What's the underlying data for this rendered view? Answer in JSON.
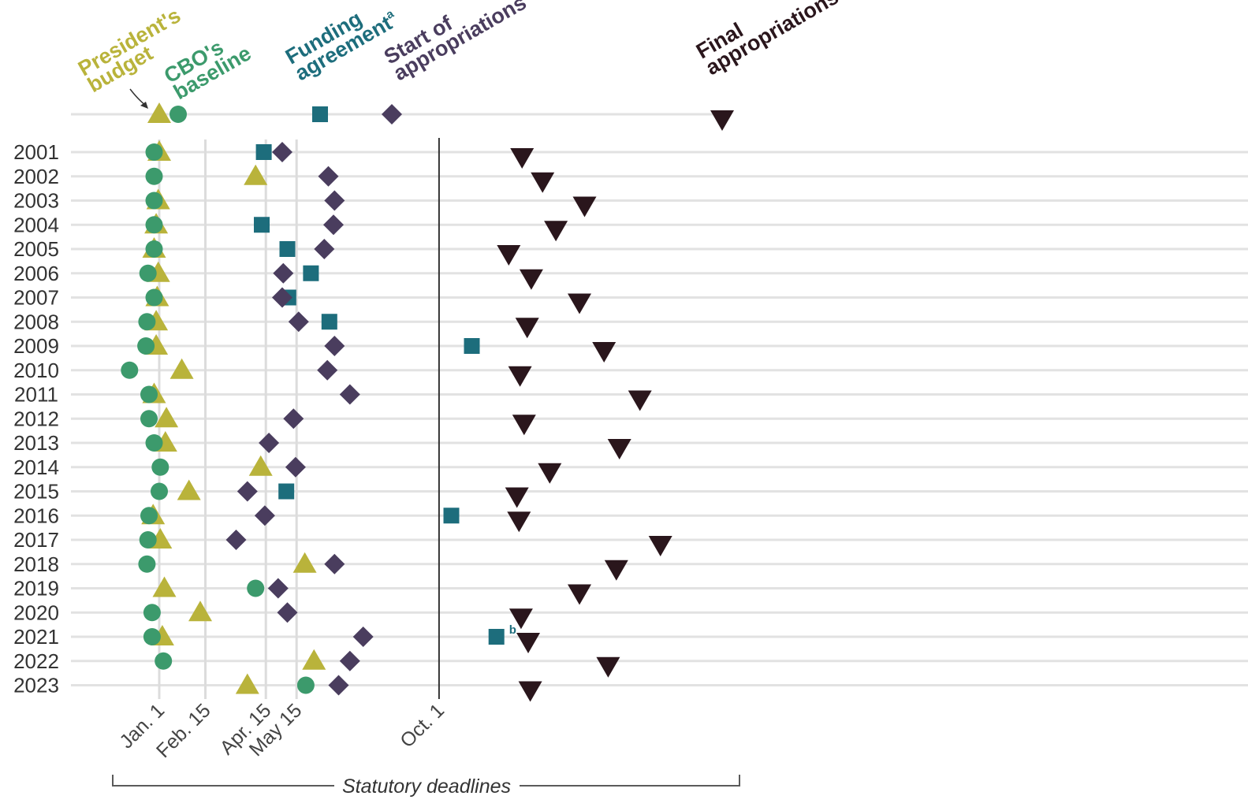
{
  "chart_data": {
    "type": "scatter",
    "x_axis": {
      "scale": "date-of-year",
      "deadline_ticks": [
        {
          "label": "Jan. 1",
          "date": "01-01"
        },
        {
          "label": "Feb. 15",
          "date": "02-15"
        },
        {
          "label": "Apr. 15",
          "date": "04-15"
        },
        {
          "label": "May 15",
          "date": "05-15"
        },
        {
          "label": "Oct. 1",
          "date": "10-01"
        }
      ],
      "bracket_label": "Statutory deadlines"
    },
    "legend": [
      {
        "key": "presidents_budget",
        "label_lines": [
          "President's",
          "budget"
        ],
        "color": "#b9b33b",
        "shape": "triangle-up"
      },
      {
        "key": "cbo_baseline",
        "label_lines": [
          "CBO's",
          "baseline"
        ],
        "color": "#3c9a6c",
        "shape": "circle"
      },
      {
        "key": "funding_agreement",
        "label_lines": [
          "Funding",
          "agreement"
        ],
        "superscript": "a",
        "color": "#1d6d7c",
        "shape": "square"
      },
      {
        "key": "start_of_appropriations",
        "label_lines": [
          "Start of",
          "appropriations"
        ],
        "color": "#4a3d5e",
        "shape": "diamond"
      },
      {
        "key": "final_appropriations",
        "label_lines": [
          "Final",
          "appropriations"
        ],
        "color": "#2a161c",
        "shape": "triangle-down"
      }
    ],
    "categories": [
      "2001",
      "2002",
      "2003",
      "2004",
      "2005",
      "2006",
      "2007",
      "2008",
      "2009",
      "2010",
      "2011",
      "2012",
      "2013",
      "2014",
      "2015",
      "2016",
      "2017",
      "2018",
      "2019",
      "2020",
      "2021",
      "2022",
      "2023"
    ],
    "series": [
      {
        "key": "presidents_budget",
        "name": "President's budget",
        "values": [
          "01-01",
          "04-05",
          "01--1",
          "01--3",
          "01--5",
          "12-31",
          "12-30",
          "12-29",
          "12-29",
          "01-23",
          "12-27",
          "01-08",
          "01-07",
          "04-10",
          "01-30",
          "12-26",
          "01-02",
          "05-23",
          "01-06",
          "02-10",
          "01-04",
          "06-01",
          "03-28"
        ]
      },
      {
        "key": "cbo_baseline",
        "name": "CBO's baseline",
        "values": [
          "12-27",
          "12-27",
          "12-27",
          "12-27",
          "12-27",
          "12-21",
          "12-27",
          "12-20",
          "12-19",
          "12-03",
          "12-22",
          "12-22",
          "12-27",
          "01-02",
          "01-01",
          "12-22",
          "12-21",
          "12-20",
          "04-05",
          "12-25",
          "12-25",
          "01-05",
          "05-24"
        ]
      },
      {
        "key": "funding_agreement",
        "name": "Funding agreement",
        "values": [
          "04-13",
          null,
          null,
          "04-11",
          "05-06",
          "05-29",
          "05-07",
          "06-16",
          "11-02",
          null,
          null,
          null,
          null,
          null,
          "05-05",
          "10-13",
          null,
          null,
          null,
          null,
          "11-26",
          null,
          null
        ]
      },
      {
        "key": "start_of_appropriations",
        "name": "Start of appropriations",
        "values": [
          "05-01",
          "06-15",
          "06-21",
          "06-20",
          "06-11",
          "05-02",
          "05-01",
          "05-17",
          "06-21",
          "06-14",
          "07-06",
          "05-12",
          "04-18",
          "05-14",
          "03-28",
          "04-14",
          "03-17",
          "06-21",
          "04-27",
          "05-06",
          "07-19",
          "07-06",
          "06-25"
        ]
      },
      {
        "key": "final_appropriations",
        "name": "Final appropriations",
        "values": [
          "12-21",
          "01-10",
          "02-20",
          "01-23",
          "12-08",
          "12-30",
          "02-15",
          "12-26",
          "03-11",
          "12-19",
          "04-15",
          "12-23",
          "03-26",
          "01-17",
          "12-16",
          "12-18",
          "05-05",
          "03-23",
          "02-15",
          "12-20",
          "12-27",
          "03-15",
          "12-29"
        ]
      }
    ],
    "notes": [
      "b"
    ]
  }
}
